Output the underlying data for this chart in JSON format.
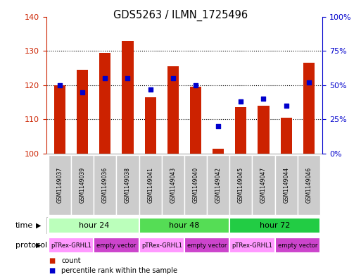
{
  "title": "GDS5263 / ILMN_1725496",
  "samples": [
    "GSM1149037",
    "GSM1149039",
    "GSM1149036",
    "GSM1149038",
    "GSM1149041",
    "GSM1149043",
    "GSM1149040",
    "GSM1149042",
    "GSM1149045",
    "GSM1149047",
    "GSM1149044",
    "GSM1149046"
  ],
  "count_values": [
    120.0,
    124.5,
    129.5,
    133.0,
    116.5,
    125.5,
    119.5,
    101.5,
    113.5,
    114.0,
    110.5,
    126.5
  ],
  "percentile_values": [
    50,
    45,
    55,
    55,
    47,
    55,
    50,
    20,
    38,
    40,
    35,
    52
  ],
  "ylim_left": [
    100,
    140
  ],
  "ylim_right": [
    0,
    100
  ],
  "left_ticks": [
    100,
    110,
    120,
    130,
    140
  ],
  "right_ticks": [
    0,
    25,
    50,
    75,
    100
  ],
  "right_tick_labels": [
    "0%",
    "25%",
    "50%",
    "75%",
    "100%"
  ],
  "bar_color": "#cc2200",
  "dot_color": "#0000cc",
  "bar_width": 0.5,
  "time_groups": [
    {
      "label": "hour 24",
      "start": 0,
      "end": 3,
      "color": "#bbffbb"
    },
    {
      "label": "hour 48",
      "start": 4,
      "end": 7,
      "color": "#55dd55"
    },
    {
      "label": "hour 72",
      "start": 8,
      "end": 11,
      "color": "#22cc44"
    }
  ],
  "protocol_groups": [
    {
      "label": "pTRex-GRHL1",
      "start": 0,
      "end": 1,
      "color": "#ff99ff"
    },
    {
      "label": "empty vector",
      "start": 2,
      "end": 3,
      "color": "#cc44cc"
    },
    {
      "label": "pTRex-GRHL1",
      "start": 4,
      "end": 5,
      "color": "#ff99ff"
    },
    {
      "label": "empty vector",
      "start": 6,
      "end": 7,
      "color": "#cc44cc"
    },
    {
      "label": "pTRex-GRHL1",
      "start": 8,
      "end": 9,
      "color": "#ff99ff"
    },
    {
      "label": "empty vector",
      "start": 10,
      "end": 11,
      "color": "#cc44cc"
    }
  ],
  "ybase": 100,
  "sample_bg_color": "#cccccc",
  "left_axis_color": "#cc2200",
  "right_axis_color": "#0000cc",
  "grid_color": "#000000",
  "grid_yticks": [
    110,
    120,
    130
  ],
  "time_label": "time",
  "protocol_label": "protocol",
  "legend_items": [
    {
      "color": "#cc2200",
      "label": "count"
    },
    {
      "color": "#0000cc",
      "label": "percentile rank within the sample"
    }
  ]
}
